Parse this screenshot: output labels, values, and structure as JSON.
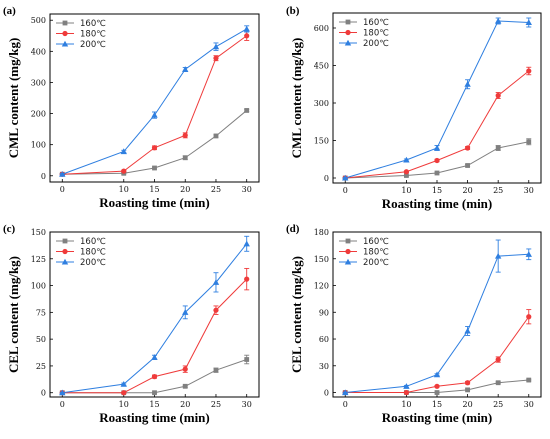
{
  "chart_data": [
    {
      "panel_label": "(a)",
      "type": "line",
      "title": "",
      "xlabel": "Roasting time (min)",
      "ylabel": "CML content (mg/kg)",
      "xlim": [
        -2,
        32
      ],
      "ylim": [
        -20,
        520
      ],
      "xticks": [
        0,
        10,
        15,
        20,
        25,
        30
      ],
      "yticks": [
        0,
        100,
        200,
        300,
        400,
        500
      ],
      "legend": "top-left",
      "x": [
        0,
        10,
        15,
        20,
        25,
        30
      ],
      "series": [
        {
          "name": "160℃",
          "color": "#808080",
          "marker": "square",
          "values": [
            5,
            8,
            25,
            58,
            128,
            210
          ],
          "errors": [
            2,
            2,
            3,
            6,
            4,
            4
          ]
        },
        {
          "name": "180℃",
          "color": "#ef3b3b",
          "marker": "circle",
          "values": [
            5,
            15,
            90,
            130,
            378,
            450
          ],
          "errors": [
            2,
            3,
            6,
            8,
            8,
            15
          ]
        },
        {
          "name": "200℃",
          "color": "#2f7fe0",
          "marker": "triangle",
          "values": [
            5,
            78,
            195,
            342,
            415,
            472
          ],
          "errors": [
            2,
            4,
            10,
            6,
            12,
            10
          ]
        }
      ]
    },
    {
      "panel_label": "(b)",
      "type": "line",
      "title": "",
      "xlabel": "Roasting time (min)",
      "ylabel": "CML content (mg/kg)",
      "xlim": [
        -2,
        32
      ],
      "ylim": [
        -20,
        660
      ],
      "xticks": [
        0,
        10,
        15,
        20,
        25,
        30
      ],
      "yticks": [
        0,
        150,
        300,
        450,
        600
      ],
      "legend": "top-left",
      "x": [
        0,
        10,
        15,
        20,
        25,
        30
      ],
      "series": [
        {
          "name": "160℃",
          "color": "#808080",
          "marker": "square",
          "values": [
            0,
            10,
            20,
            50,
            120,
            145
          ],
          "errors": [
            2,
            2,
            3,
            4,
            10,
            12
          ]
        },
        {
          "name": "180℃",
          "color": "#ef3b3b",
          "marker": "circle",
          "values": [
            0,
            25,
            70,
            120,
            330,
            428
          ],
          "errors": [
            2,
            3,
            5,
            6,
            12,
            15
          ]
        },
        {
          "name": "200℃",
          "color": "#2f7fe0",
          "marker": "triangle",
          "values": [
            0,
            72,
            120,
            375,
            628,
            622
          ],
          "errors": [
            2,
            4,
            10,
            18,
            12,
            18
          ]
        }
      ]
    },
    {
      "panel_label": "(c)",
      "type": "line",
      "title": "",
      "xlabel": "Roasting time (min)",
      "ylabel": "CEL content (mg/kg)",
      "xlim": [
        -2,
        32
      ],
      "ylim": [
        -4,
        150
      ],
      "xticks": [
        0,
        10,
        15,
        20,
        25,
        30
      ],
      "yticks": [
        0,
        25,
        50,
        75,
        100,
        125,
        150
      ],
      "legend": "top-left",
      "x": [
        0,
        10,
        15,
        20,
        25,
        30
      ],
      "series": [
        {
          "name": "160℃",
          "color": "#808080",
          "marker": "square",
          "values": [
            0,
            0,
            0,
            6,
            21,
            31
          ],
          "errors": [
            0.5,
            0.5,
            0.5,
            1,
            2,
            4
          ]
        },
        {
          "name": "180℃",
          "color": "#ef3b3b",
          "marker": "circle",
          "values": [
            0,
            0,
            15,
            22,
            77,
            106
          ],
          "errors": [
            0.5,
            0.5,
            1.5,
            3,
            4,
            10
          ]
        },
        {
          "name": "200℃",
          "color": "#2f7fe0",
          "marker": "triangle",
          "values": [
            0,
            8,
            33,
            75,
            103,
            139
          ],
          "errors": [
            0.5,
            1,
            2,
            6,
            9,
            7
          ]
        }
      ]
    },
    {
      "panel_label": "(d)",
      "type": "line",
      "title": "",
      "xlabel": "Roasting time (min)",
      "ylabel": "CEL content (mg/kg)",
      "xlim": [
        -2,
        32
      ],
      "ylim": [
        -5,
        180
      ],
      "xticks": [
        0,
        10,
        15,
        20,
        25,
        30
      ],
      "yticks": [
        0,
        30,
        60,
        90,
        120,
        150,
        180
      ],
      "legend": "top-left",
      "x": [
        0,
        10,
        15,
        20,
        25,
        30
      ],
      "series": [
        {
          "name": "160℃",
          "color": "#808080",
          "marker": "square",
          "values": [
            0,
            0,
            0,
            3,
            11,
            14
          ],
          "errors": [
            0.5,
            0.5,
            0.5,
            1,
            1,
            1
          ]
        },
        {
          "name": "180℃",
          "color": "#ef3b3b",
          "marker": "circle",
          "values": [
            0,
            0,
            7,
            11,
            37,
            85
          ],
          "errors": [
            0.5,
            0.5,
            1,
            1.5,
            3,
            8
          ]
        },
        {
          "name": "200℃",
          "color": "#2f7fe0",
          "marker": "triangle",
          "values": [
            0,
            7,
            20,
            69,
            153,
            155
          ],
          "errors": [
            0.5,
            1,
            1,
            5,
            18,
            6
          ]
        }
      ]
    }
  ]
}
